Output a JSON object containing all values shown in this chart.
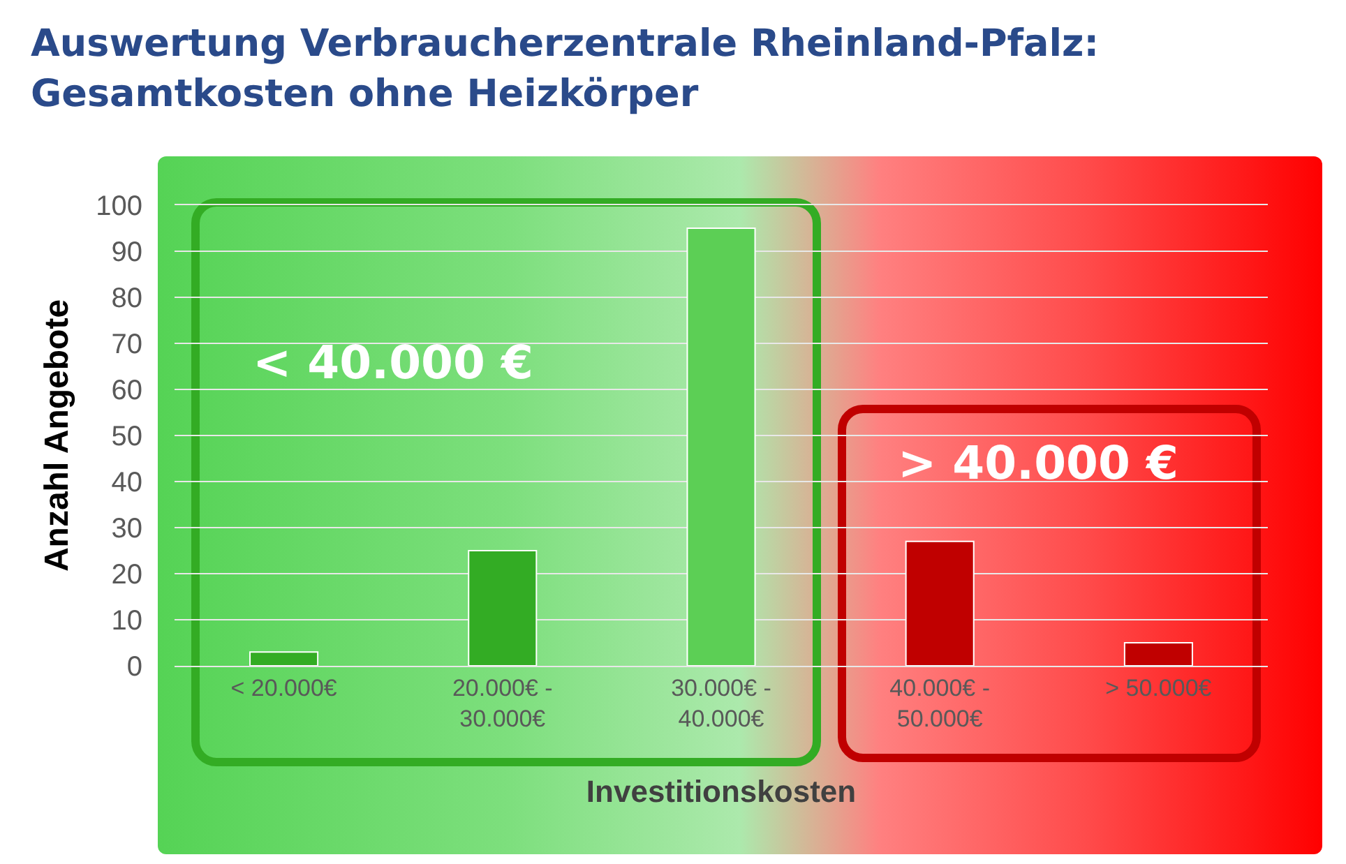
{
  "chart_data": {
    "type": "bar",
    "title": "Auswertung Verbraucherzentrale Rheinland-Pfalz:\nGesamtkosten ohne Heizkörper",
    "xlabel": "Investitionskosten",
    "ylabel": "Anzahl Angebote",
    "categories": [
      "< 20.000€",
      "20.000€ - 30.000€",
      "30.000€ - 40.000€",
      "40.000€ - 50.000€",
      "> 50.000€"
    ],
    "values": [
      3,
      25,
      95,
      27,
      5
    ],
    "colors": [
      "#33ac24",
      "#33ac24",
      "#5ccf55",
      "#c00000",
      "#c00000"
    ],
    "ylim": [
      0,
      100
    ],
    "yticks": [
      0,
      10,
      20,
      30,
      40,
      50,
      60,
      70,
      80,
      90,
      100
    ],
    "grid": true,
    "annotations": [
      "< 40.000 €",
      "> 40.000 €"
    ]
  }
}
